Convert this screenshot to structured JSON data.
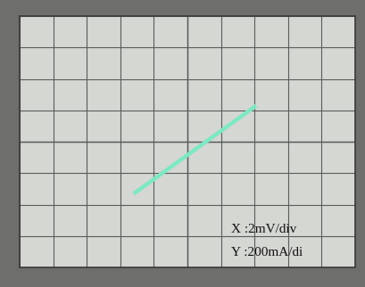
{
  "chart_data": {
    "type": "line",
    "x": [
      -3.2,
      4.1
    ],
    "values": [
      -330,
      230
    ],
    "color": "#7ee8c4",
    "xlim": [
      -10,
      10
    ],
    "xticks": [
      -10,
      -8,
      -6,
      -4,
      -2,
      0,
      2,
      4,
      6,
      8,
      10
    ],
    "ylim": [
      -800,
      800
    ],
    "yticks": [
      -800,
      -600,
      -400,
      -200,
      0,
      200,
      400,
      600,
      800
    ],
    "grid": true,
    "tick_labels": false,
    "annotations": [
      "X :2mV/div",
      "Y :200mA/di"
    ]
  }
}
